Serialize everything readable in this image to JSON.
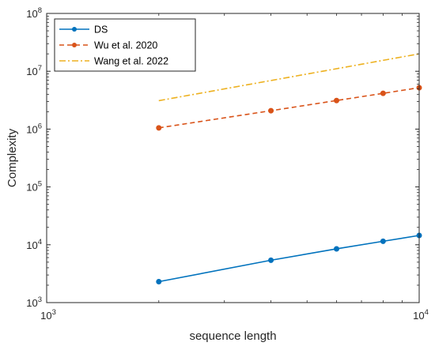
{
  "chart_data": {
    "type": "line",
    "title": "",
    "xlabel": "sequence length",
    "ylabel": "Complexity",
    "xscale": "log",
    "yscale": "log",
    "xlim": [
      1000,
      10000
    ],
    "ylim": [
      1000,
      100000000
    ],
    "x_ticks": [
      {
        "value": 1000,
        "base": "10",
        "exp": "3"
      },
      {
        "value": 10000,
        "base": "10",
        "exp": "4"
      }
    ],
    "y_ticks": [
      {
        "value": 1000,
        "base": "10",
        "exp": "3"
      },
      {
        "value": 10000,
        "base": "10",
        "exp": "4"
      },
      {
        "value": 100000,
        "base": "10",
        "exp": "5"
      },
      {
        "value": 1000000,
        "base": "10",
        "exp": "6"
      },
      {
        "value": 10000000,
        "base": "10",
        "exp": "7"
      },
      {
        "value": 100000000,
        "base": "10",
        "exp": "8"
      }
    ],
    "grid": false,
    "box": true,
    "legend_position": "top-left",
    "series": [
      {
        "name": "DS",
        "color": "#0072BD",
        "line_style": "solid",
        "marker": "circle",
        "x": [
          2000,
          4000,
          6000,
          8000,
          10000
        ],
        "y": [
          2300,
          5400,
          8500,
          11500,
          14500
        ]
      },
      {
        "name": "Wu et al. 2020",
        "color": "#D95319",
        "line_style": "dashed",
        "marker": "circle",
        "x": [
          2000,
          4000,
          6000,
          8000,
          10000
        ],
        "y": [
          1050000,
          2080000,
          3120000,
          4150000,
          5200000
        ]
      },
      {
        "name": "Wang et al. 2022",
        "color": "#EDB120",
        "line_style": "dashdot",
        "marker": "none",
        "x": [
          2000,
          10000
        ],
        "y": [
          3100000,
          20000000
        ]
      }
    ]
  }
}
